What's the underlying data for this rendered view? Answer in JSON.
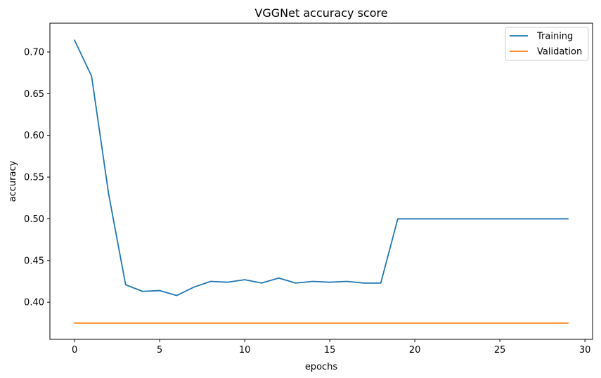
{
  "chart_data": {
    "type": "line",
    "title": "VGGNet accuracy score",
    "xlabel": "epochs",
    "ylabel": "accuracy",
    "xlim": [
      -1.45,
      30.45
    ],
    "ylim": [
      0.3555,
      0.7345
    ],
    "xticks": [
      0,
      5,
      10,
      15,
      20,
      25,
      30
    ],
    "yticks": [
      0.4,
      0.45,
      0.5,
      0.55,
      0.6,
      0.65,
      0.7
    ],
    "ytick_labels": [
      "0.40",
      "0.45",
      "0.50",
      "0.55",
      "0.60",
      "0.65",
      "0.70"
    ],
    "grid": false,
    "legend_position": "top-right",
    "series": [
      {
        "name": "Training",
        "color": "#1f77b4",
        "x": [
          0,
          1,
          2,
          3,
          4,
          5,
          6,
          7,
          8,
          9,
          10,
          11,
          12,
          13,
          14,
          15,
          16,
          17,
          18,
          19,
          20,
          21,
          22,
          23,
          24,
          25,
          26,
          27,
          28,
          29
        ],
        "values": [
          0.714,
          0.671,
          0.53,
          0.421,
          0.413,
          0.414,
          0.408,
          0.418,
          0.425,
          0.424,
          0.427,
          0.423,
          0.429,
          0.423,
          0.425,
          0.424,
          0.425,
          0.423,
          0.423,
          0.5,
          0.5,
          0.5,
          0.5,
          0.5,
          0.5,
          0.5,
          0.5,
          0.5,
          0.5,
          0.5
        ]
      },
      {
        "name": "Validation",
        "color": "#ff7f0e",
        "x": [
          0,
          1,
          2,
          3,
          4,
          5,
          6,
          7,
          8,
          9,
          10,
          11,
          12,
          13,
          14,
          15,
          16,
          17,
          18,
          19,
          20,
          21,
          22,
          23,
          24,
          25,
          26,
          27,
          28,
          29
        ],
        "values": [
          0.375,
          0.375,
          0.375,
          0.375,
          0.375,
          0.375,
          0.375,
          0.375,
          0.375,
          0.375,
          0.375,
          0.375,
          0.375,
          0.375,
          0.375,
          0.375,
          0.375,
          0.375,
          0.375,
          0.375,
          0.375,
          0.375,
          0.375,
          0.375,
          0.375,
          0.375,
          0.375,
          0.375,
          0.375,
          0.375
        ]
      }
    ]
  }
}
